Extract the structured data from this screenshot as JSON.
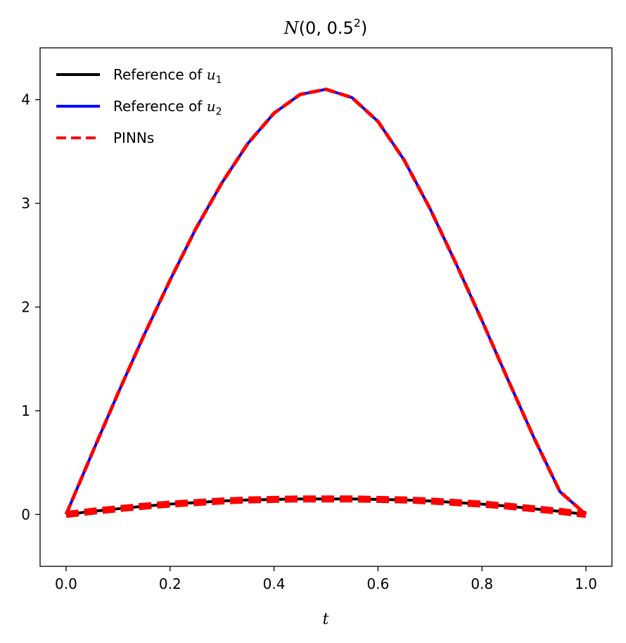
{
  "chart_data": {
    "type": "line",
    "title": "N(0, 0.5²)",
    "xlabel": "t",
    "ylabel": "",
    "xlim": [
      -0.05,
      1.05
    ],
    "ylim": [
      -0.5,
      4.5
    ],
    "xticks": [
      "0.0",
      "0.2",
      "0.4",
      "0.6",
      "0.8",
      "1.0"
    ],
    "yticks": [
      "0",
      "1",
      "2",
      "3",
      "4"
    ],
    "grid": false,
    "legend_position": "top-left",
    "x": [
      0.0,
      0.05,
      0.1,
      0.15,
      0.2,
      0.25,
      0.3,
      0.35,
      0.4,
      0.45,
      0.5,
      0.55,
      0.6,
      0.65,
      0.7,
      0.75,
      0.8,
      0.85,
      0.9,
      0.95,
      1.0
    ],
    "series": [
      {
        "name": "Reference of u₁",
        "color": "#000000",
        "style": "solid",
        "values": [
          0.0,
          0.03,
          0.055,
          0.08,
          0.1,
          0.115,
          0.13,
          0.14,
          0.145,
          0.15,
          0.15,
          0.15,
          0.145,
          0.14,
          0.13,
          0.115,
          0.1,
          0.08,
          0.055,
          0.03,
          0.0
        ]
      },
      {
        "name": "Reference of u₂",
        "color": "#0000ff",
        "style": "solid",
        "values": [
          0.0,
          0.59,
          1.17,
          1.73,
          2.26,
          2.76,
          3.2,
          3.58,
          3.87,
          4.05,
          4.1,
          4.02,
          3.79,
          3.42,
          2.95,
          2.42,
          1.87,
          1.3,
          0.74,
          0.22,
          0.0
        ]
      },
      {
        "name": "PINNs",
        "color": "#ff0000",
        "style": "dashed",
        "u1_values": [
          0.0,
          0.03,
          0.055,
          0.08,
          0.1,
          0.115,
          0.13,
          0.14,
          0.145,
          0.15,
          0.15,
          0.15,
          0.145,
          0.14,
          0.13,
          0.115,
          0.1,
          0.08,
          0.055,
          0.03,
          0.0
        ],
        "u2_values": [
          0.0,
          0.59,
          1.17,
          1.73,
          2.26,
          2.76,
          3.2,
          3.58,
          3.87,
          4.05,
          4.1,
          4.02,
          3.79,
          3.42,
          2.95,
          2.42,
          1.87,
          1.3,
          0.74,
          0.22,
          0.0
        ]
      }
    ]
  }
}
